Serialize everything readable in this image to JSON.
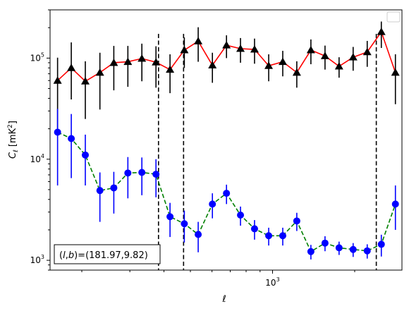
{
  "chart_data": {
    "type": "scatter",
    "title": "",
    "xlabel": "ℓ",
    "ylabel": "C_ℓ  [mK²]",
    "ylabel_parts": {
      "sym": "C",
      "sub": "ℓ",
      "unit_open": "  [mK",
      "unit_sup": "2",
      "unit_close": "]"
    },
    "xscale": "log",
    "yscale": "log",
    "xlim": [
      153,
      2980
    ],
    "ylim": [
      800,
      300000
    ],
    "x_ticks": [
      {
        "value": 1000,
        "label": "10",
        "sup": "3"
      }
    ],
    "y_ticks": [
      {
        "value": 1000,
        "label": "10",
        "sup": "3"
      },
      {
        "value": 10000,
        "label": "10",
        "sup": "4"
      },
      {
        "value": 100000,
        "label": "10",
        "sup": "5"
      }
    ],
    "legend": {
      "position": "top-right",
      "entries": []
    },
    "annotation": "(l,b)=(181.97,9.82)",
    "annotation_parts": {
      "italic_open": "(",
      "l": "l",
      "sep": ",",
      "b": "b",
      "rest": ")=(181.97,9.82)"
    },
    "vlines": [
      382,
      472,
      2400
    ],
    "series": [
      {
        "color": "#000000",
        "line_color": "#ff0000",
        "line_style": "solid",
        "marker": "triangle",
        "x": [
          163,
          183,
          206,
          233,
          262,
          295,
          332,
          374,
          421,
          475,
          534,
          602,
          678,
          763,
          859,
          968,
          1090,
          1227,
          1382,
          1557,
          1753,
          1974,
          2223,
          2504,
          2820
        ],
        "y": [
          60000,
          80000,
          59000,
          72000,
          90000,
          92000,
          99000,
          91000,
          77000,
          120000,
          147000,
          85000,
          134000,
          124000,
          122000,
          84000,
          92000,
          72000,
          120000,
          105000,
          83000,
          102000,
          115000,
          182000,
          72000
        ],
        "err_low": [
          41000,
          41000,
          34000,
          41000,
          42000,
          40000,
          40000,
          40000,
          32000,
          40000,
          55000,
          28000,
          34000,
          34000,
          34000,
          25000,
          26000,
          21000,
          33000,
          28000,
          19000,
          27000,
          33000,
          56000,
          37000
        ],
        "err_high": [
          41000,
          63000,
          34000,
          41000,
          42000,
          40000,
          40000,
          40000,
          32000,
          40000,
          55000,
          28000,
          34000,
          34000,
          34000,
          25000,
          26000,
          21000,
          33000,
          28000,
          19000,
          27000,
          33000,
          48000,
          37000
        ]
      },
      {
        "color": "#0000ff",
        "line_color": "#008000",
        "line_style": "dashed",
        "marker": "circle",
        "x": [
          163,
          183,
          206,
          233,
          262,
          295,
          332,
          374,
          421,
          475,
          534,
          602,
          678,
          763,
          859,
          968,
          1090,
          1227,
          1382,
          1557,
          1753,
          1974,
          2223,
          2504,
          2820
        ],
        "y": [
          18500,
          16000,
          11000,
          4900,
          5200,
          7300,
          7400,
          7100,
          2700,
          2300,
          1800,
          3600,
          4600,
          2800,
          2050,
          1750,
          1750,
          2450,
          1220,
          1480,
          1330,
          1280,
          1240,
          1440,
          3600
        ],
        "err_low": [
          13000,
          9500,
          5500,
          2500,
          2300,
          3200,
          3000,
          2900,
          1000,
          800,
          600,
          1000,
          1000,
          600,
          450,
          350,
          350,
          500,
          200,
          250,
          200,
          200,
          200,
          350,
          1600
        ],
        "err_high": [
          13000,
          12000,
          6500,
          2500,
          2300,
          3200,
          3000,
          2900,
          1000,
          800,
          600,
          1000,
          1000,
          600,
          450,
          350,
          350,
          500,
          200,
          250,
          200,
          200,
          200,
          350,
          1900
        ]
      }
    ]
  }
}
